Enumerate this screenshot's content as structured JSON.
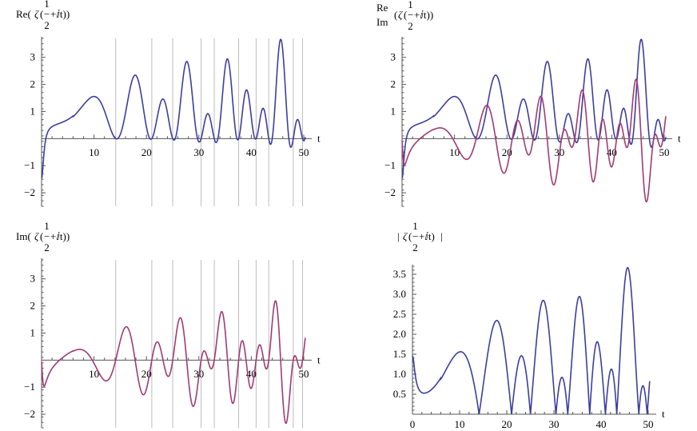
{
  "colors": {
    "re_series": "#3d3d9e",
    "im_series": "#a03a74",
    "zero_lines": "#bdbdbd",
    "axis": "#555555"
  },
  "zeta_zeros": [
    14.1347,
    21.022,
    25.0109,
    30.4249,
    32.9351,
    37.5862,
    40.9187,
    43.3271,
    48.0052,
    49.7738
  ],
  "chart_data": [
    {
      "id": "re",
      "type": "line",
      "title_parts": {
        "prefix": "Re(",
        "zeta": "ζ",
        "open": "(",
        "frac_num": "1",
        "frac_den": "2",
        "tail": "+ⅈt))",
        "minus": "−"
      },
      "xlabel": "t",
      "xlim": [
        0,
        50
      ],
      "ylim": [
        -2.5,
        3.7
      ],
      "x_ticks": [
        "10",
        "20",
        "30",
        "40",
        "50"
      ],
      "y_ticks": [
        "−2",
        "−1",
        "1",
        "2",
        "3"
      ],
      "zero_lines": true,
      "series": [
        {
          "key": "re"
        }
      ]
    },
    {
      "id": "reim",
      "type": "line",
      "title_parts": {
        "re": "Re",
        "im": "Im",
        "zeta": "ζ",
        "open": "(",
        "frac_num": "1",
        "frac_den": "2",
        "tail": "+ⅈt))",
        "minus": "−"
      },
      "xlabel": "t",
      "xlim": [
        0,
        50
      ],
      "ylim": [
        -2.5,
        3.7
      ],
      "x_ticks": [
        "10",
        "20",
        "30",
        "40",
        "50"
      ],
      "y_ticks": [
        "−2",
        "−1",
        "1",
        "2",
        "3"
      ],
      "zero_lines": false,
      "series": [
        {
          "key": "re"
        },
        {
          "key": "im"
        }
      ]
    },
    {
      "id": "im",
      "type": "line",
      "title_parts": {
        "prefix": "Im(",
        "zeta": "ζ",
        "open": "(",
        "frac_num": "1",
        "frac_den": "2",
        "tail": "+ⅈt))",
        "minus": "−"
      },
      "xlabel": "t",
      "xlim": [
        0,
        50
      ],
      "ylim": [
        -2.5,
        3.7
      ],
      "x_ticks": [
        "10",
        "20",
        "30",
        "40",
        "50"
      ],
      "y_ticks": [
        "−2",
        "−1",
        "1",
        "2",
        "3"
      ],
      "zero_lines": true,
      "series": [
        {
          "key": "im"
        }
      ]
    },
    {
      "id": "abs",
      "type": "line",
      "title_parts": {
        "bar_l": "|",
        "zeta": "ζ",
        "open": "(",
        "frac_num": "1",
        "frac_den": "2",
        "tail": "+ⅈt)",
        "bar_r": "|",
        "minus": "−"
      },
      "xlabel": "t",
      "xlim": [
        0,
        50
      ],
      "ylim": [
        0,
        3.7
      ],
      "x_ticks": [
        "0",
        "10",
        "20",
        "30",
        "40",
        "50"
      ],
      "y_ticks": [
        "0.5",
        "1.0",
        "1.5",
        "2.0",
        "2.5",
        "3.0",
        "3.5"
      ],
      "zero_lines": false,
      "series": [
        {
          "key": "abs"
        }
      ]
    }
  ]
}
